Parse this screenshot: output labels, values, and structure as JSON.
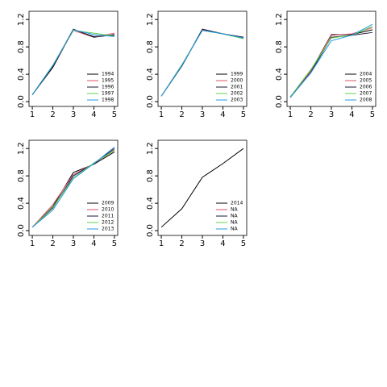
{
  "chart_data": [
    {
      "type": "line",
      "x": [
        1,
        2,
        3,
        4,
        5
      ],
      "xlim": [
        0.84,
        5.16
      ],
      "xticks": [
        1,
        2,
        3,
        4,
        5
      ],
      "ylim": [
        -0.07,
        1.32
      ],
      "yticks": [
        {
          "value": 0,
          "label": "0.0"
        },
        0.4,
        0.8,
        1.2
      ],
      "legend": "bottomright",
      "series": [
        {
          "name": "1994",
          "color": "#000000",
          "values": [
            0.1,
            0.5,
            1.05,
            0.95,
            0.97
          ]
        },
        {
          "name": "1995",
          "color": "#df536b",
          "values": [
            0.1,
            0.52,
            1.04,
            0.94,
            1.0
          ]
        },
        {
          "name": "1996",
          "color": "#1a1a3a",
          "values": [
            0.1,
            0.52,
            1.06,
            0.94,
            0.98
          ]
        },
        {
          "name": "1997",
          "color": "#61d04f",
          "values": [
            0.1,
            0.53,
            1.04,
            1.0,
            0.96
          ]
        },
        {
          "name": "1998",
          "color": "#2297e6",
          "values": [
            0.1,
            0.53,
            1.05,
            0.98,
            0.95
          ]
        }
      ]
    },
    {
      "type": "line",
      "x": [
        1,
        2,
        3,
        4,
        5
      ],
      "xlim": [
        0.84,
        5.16
      ],
      "xticks": [
        1,
        2,
        3,
        4,
        5
      ],
      "ylim": [
        -0.07,
        1.32
      ],
      "yticks": [
        {
          "value": 0,
          "label": "0.0"
        },
        0.4,
        0.8,
        1.2
      ],
      "legend": "bottomright",
      "series": [
        {
          "name": "1999",
          "color": "#000000",
          "values": [
            0.08,
            0.52,
            1.05,
            0.99,
            0.94
          ]
        },
        {
          "name": "2000",
          "color": "#df536b",
          "values": [
            0.08,
            0.53,
            1.05,
            0.99,
            0.93
          ]
        },
        {
          "name": "2001",
          "color": "#1a1a3a",
          "values": [
            0.08,
            0.52,
            1.06,
            0.99,
            0.94
          ]
        },
        {
          "name": "2002",
          "color": "#61d04f",
          "values": [
            0.08,
            0.54,
            1.04,
            0.99,
            0.92
          ]
        },
        {
          "name": "2003",
          "color": "#2297e6",
          "values": [
            0.08,
            0.53,
            1.04,
            0.99,
            0.93
          ]
        }
      ]
    },
    {
      "type": "line",
      "x": [
        1,
        2,
        3,
        4,
        5
      ],
      "xlim": [
        0.84,
        5.16
      ],
      "xticks": [
        1,
        2,
        3,
        4,
        5
      ],
      "ylim": [
        -0.07,
        1.32
      ],
      "yticks": [
        {
          "value": 0,
          "label": "0.0"
        },
        0.4,
        0.8,
        1.2
      ],
      "legend": "bottomright",
      "series": [
        {
          "name": "2004",
          "color": "#000000",
          "values": [
            0.07,
            0.45,
            0.98,
            0.98,
            1.05
          ]
        },
        {
          "name": "2005",
          "color": "#df536b",
          "values": [
            0.07,
            0.45,
            0.97,
            0.99,
            1.08
          ]
        },
        {
          "name": "2006",
          "color": "#1a1a3a",
          "values": [
            0.06,
            0.43,
            0.94,
            0.97,
            1.01
          ]
        },
        {
          "name": "2007",
          "color": "#61d04f",
          "values": [
            0.07,
            0.47,
            0.93,
            0.97,
            1.1
          ]
        },
        {
          "name": "2008",
          "color": "#2297e6",
          "values": [
            0.06,
            0.42,
            0.89,
            0.97,
            1.13
          ]
        }
      ]
    },
    {
      "type": "line",
      "x": [
        1,
        2,
        3,
        4,
        5
      ],
      "xlim": [
        0.84,
        5.16
      ],
      "xticks": [
        1,
        2,
        3,
        4,
        5
      ],
      "ylim": [
        -0.07,
        1.32
      ],
      "yticks": [
        {
          "value": 0,
          "label": "0.0"
        },
        0.4,
        0.8,
        1.2
      ],
      "legend": "bottomright",
      "series": [
        {
          "name": "2009",
          "color": "#000000",
          "values": [
            0.05,
            0.35,
            0.85,
            0.97,
            1.15
          ]
        },
        {
          "name": "2010",
          "color": "#df536b",
          "values": [
            0.05,
            0.38,
            0.82,
            0.98,
            1.18
          ]
        },
        {
          "name": "2011",
          "color": "#1a1a3a",
          "values": [
            0.05,
            0.33,
            0.8,
            0.98,
            1.2
          ]
        },
        {
          "name": "2012",
          "color": "#61d04f",
          "values": [
            0.05,
            0.34,
            0.77,
            0.99,
            1.17
          ]
        },
        {
          "name": "2013",
          "color": "#2297e6",
          "values": [
            0.05,
            0.3,
            0.76,
            0.98,
            1.22
          ]
        }
      ]
    },
    {
      "type": "line",
      "x": [
        1,
        2,
        3,
        4,
        5
      ],
      "xlim": [
        0.84,
        5.16
      ],
      "xticks": [
        1,
        2,
        3,
        4,
        5
      ],
      "ylim": [
        -0.07,
        1.32
      ],
      "yticks": [
        {
          "value": 0,
          "label": "0.0"
        },
        0.4,
        0.8,
        1.2
      ],
      "legend": "bottomright",
      "series": [
        {
          "name": "2014",
          "color": "#000000",
          "values": [
            0.05,
            0.32,
            0.78,
            0.98,
            1.2
          ]
        },
        {
          "name": "NA",
          "color": "#df536b",
          "values": [
            null,
            null,
            null,
            null,
            null
          ]
        },
        {
          "name": "NA",
          "color": "#1a1a3a",
          "values": [
            null,
            null,
            null,
            null,
            null
          ]
        },
        {
          "name": "NA",
          "color": "#61d04f",
          "values": [
            null,
            null,
            null,
            null,
            null
          ]
        },
        {
          "name": "NA",
          "color": "#2297e6",
          "values": [
            null,
            null,
            null,
            null,
            null
          ]
        }
      ]
    }
  ]
}
